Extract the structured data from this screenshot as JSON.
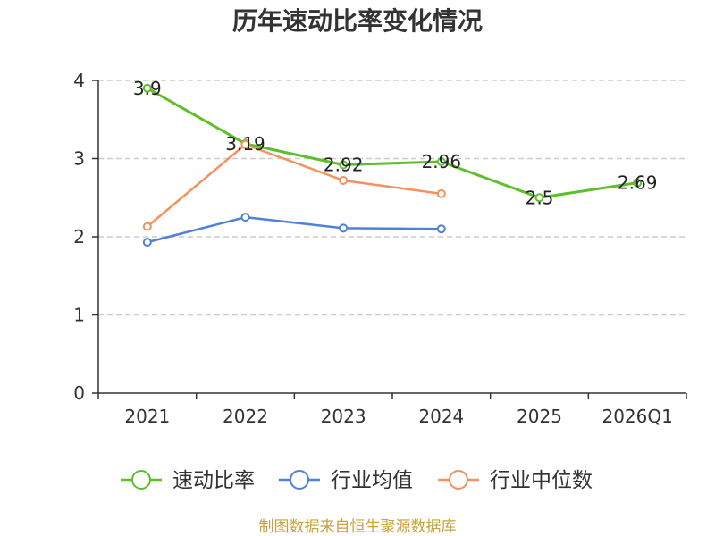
{
  "chart_data": {
    "type": "line",
    "title": "历年速动比率变化情况",
    "categories": [
      "2021",
      "2022",
      "2023",
      "2024",
      "2025",
      "2026Q1"
    ],
    "series": [
      {
        "name": "速动比率",
        "color": "#5dbf2c",
        "values": [
          3.9,
          3.19,
          2.92,
          2.96,
          2.5,
          2.69
        ],
        "show_labels": true
      },
      {
        "name": "行业均值",
        "color": "#4f80da",
        "values": [
          1.93,
          2.25,
          2.11,
          2.1,
          null,
          null
        ],
        "show_labels": false
      },
      {
        "name": "行业中位数",
        "color": "#f5915c",
        "values": [
          2.13,
          3.18,
          2.72,
          2.55,
          null,
          null
        ],
        "show_labels": false
      }
    ],
    "ylim": [
      0,
      4
    ],
    "yticks": [
      0,
      1,
      2,
      3,
      4
    ],
    "xlabel": "",
    "ylabel": "",
    "grid": true,
    "legend_position": "bottom",
    "source": "制图数据来自恒生聚源数据库",
    "colors": {
      "axis": "#333333",
      "grid": "#cccccc",
      "source": "#c9a23b"
    }
  }
}
